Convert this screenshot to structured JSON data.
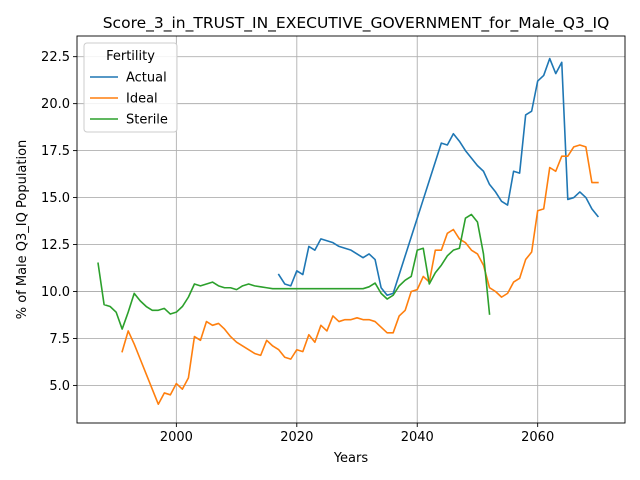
{
  "chart_data": {
    "type": "line",
    "title": "Score_3_in_TRUST_IN_EXECUTIVE_GOVERNMENT_for_Male_Q3_IQ",
    "xlabel": "Years",
    "ylabel": "% of Male Q3_IQ Population",
    "xlim": [
      1983.5,
      2074.5
    ],
    "ylim": [
      3.0,
      23.6
    ],
    "xticks": [
      2000,
      2020,
      2040,
      2060
    ],
    "yticks": [
      5.0,
      7.5,
      10.0,
      12.5,
      15.0,
      17.5,
      20.0,
      22.5
    ],
    "grid": true,
    "legend": {
      "title": "Fertility",
      "placement": "top-left"
    },
    "series": [
      {
        "name": "Actual",
        "color": "#1f77b4",
        "x": [
          2017,
          2018,
          2019,
          2020,
          2021,
          2022,
          2023,
          2024,
          2025,
          2026,
          2027,
          2028,
          2029,
          2030,
          2031,
          2032,
          2033,
          2034,
          2035,
          2036,
          2037,
          2038,
          2039,
          2040,
          2041,
          2042,
          2043,
          2044,
          2045,
          2046,
          2047,
          2048,
          2049,
          2050,
          2051,
          2052,
          2053,
          2054,
          2055,
          2056,
          2057,
          2058,
          2059,
          2060,
          2061,
          2062,
          2063,
          2064,
          2065,
          2066,
          2067,
          2068,
          2069,
          2070
        ],
        "values": [
          10.9,
          10.4,
          10.3,
          11.1,
          10.9,
          12.4,
          12.2,
          12.8,
          12.7,
          12.6,
          12.4,
          12.3,
          12.2,
          12.0,
          11.8,
          12.0,
          11.7,
          10.2,
          9.8,
          9.9,
          10.9,
          11.9,
          12.9,
          13.9,
          14.9,
          15.9,
          16.9,
          17.9,
          17.8,
          18.4,
          18.0,
          17.5,
          17.1,
          16.7,
          16.4,
          15.7,
          15.3,
          14.8,
          14.6,
          16.4,
          16.3,
          19.4,
          19.6,
          21.2,
          21.5,
          22.4,
          21.6,
          22.2,
          14.9,
          15.0,
          15.3,
          15.0,
          14.4,
          14.0
        ]
      },
      {
        "name": "Ideal",
        "color": "#ff7f0e",
        "x": [
          1991,
          1992,
          1993,
          1994,
          1995,
          1996,
          1997,
          1998,
          1999,
          2000,
          2001,
          2002,
          2003,
          2004,
          2005,
          2006,
          2007,
          2008,
          2009,
          2010,
          2011,
          2012,
          2013,
          2014,
          2015,
          2016,
          2017,
          2018,
          2019,
          2020,
          2021,
          2022,
          2023,
          2024,
          2025,
          2026,
          2027,
          2028,
          2029,
          2030,
          2031,
          2032,
          2033,
          2034,
          2035,
          2036,
          2037,
          2038,
          2039,
          2040,
          2041,
          2042,
          2043,
          2044,
          2045,
          2046,
          2047,
          2048,
          2049,
          2050,
          2051,
          2052,
          2053,
          2054,
          2055,
          2056,
          2057,
          2058,
          2059,
          2060,
          2061,
          2062,
          2063,
          2064,
          2065,
          2066,
          2067,
          2068,
          2069,
          2070
        ],
        "values": [
          6.8,
          7.9,
          7.2,
          6.4,
          5.6,
          4.8,
          4.0,
          4.6,
          4.5,
          5.1,
          4.8,
          5.4,
          7.6,
          7.4,
          8.4,
          8.2,
          8.3,
          8.0,
          7.6,
          7.3,
          7.1,
          6.9,
          6.7,
          6.6,
          7.4,
          7.1,
          6.9,
          6.5,
          6.4,
          6.9,
          6.8,
          7.7,
          7.3,
          8.2,
          7.9,
          8.7,
          8.4,
          8.5,
          8.5,
          8.6,
          8.5,
          8.5,
          8.4,
          8.1,
          7.8,
          7.8,
          8.7,
          9.0,
          10.0,
          10.1,
          10.8,
          10.5,
          12.2,
          12.2,
          13.1,
          13.3,
          12.8,
          12.6,
          12.2,
          12.0,
          11.4,
          10.2,
          10.0,
          9.7,
          9.9,
          10.5,
          10.7,
          11.7,
          12.1,
          14.3,
          14.4,
          16.6,
          16.4,
          17.2,
          17.2,
          17.7,
          17.8,
          17.7,
          15.8,
          15.8
        ]
      },
      {
        "name": "Sterile",
        "color": "#2ca02c",
        "x": [
          1987,
          1988,
          1989,
          1990,
          1991,
          1992,
          1993,
          1994,
          1995,
          1996,
          1997,
          1998,
          1999,
          2000,
          2001,
          2002,
          2003,
          2004,
          2005,
          2006,
          2007,
          2008,
          2009,
          2010,
          2011,
          2012,
          2013,
          2014,
          2015,
          2016,
          2017,
          2018,
          2019,
          2020,
          2021,
          2022,
          2023,
          2024,
          2025,
          2026,
          2027,
          2028,
          2029,
          2030,
          2031,
          2032,
          2033,
          2034,
          2035,
          2036,
          2037,
          2038,
          2039,
          2040,
          2041,
          2042,
          2043,
          2044,
          2045,
          2046,
          2047,
          2048,
          2049,
          2050,
          2051,
          2052
        ],
        "values": [
          11.5,
          9.3,
          9.2,
          8.9,
          8.0,
          8.9,
          9.9,
          9.5,
          9.2,
          9.0,
          9.0,
          9.1,
          8.8,
          8.9,
          9.2,
          9.7,
          10.4,
          10.3,
          10.4,
          10.5,
          10.3,
          10.2,
          10.2,
          10.1,
          10.3,
          10.4,
          10.3,
          10.25,
          10.2,
          10.15,
          10.15,
          10.15,
          10.15,
          10.15,
          10.15,
          10.15,
          10.15,
          10.15,
          10.15,
          10.15,
          10.15,
          10.15,
          10.15,
          10.15,
          10.15,
          10.25,
          10.45,
          9.9,
          9.6,
          9.8,
          10.3,
          10.6,
          10.8,
          12.2,
          12.3,
          10.4,
          11.0,
          11.4,
          11.9,
          12.2,
          12.3,
          13.9,
          14.1,
          13.7,
          12.0,
          8.8
        ]
      }
    ]
  }
}
